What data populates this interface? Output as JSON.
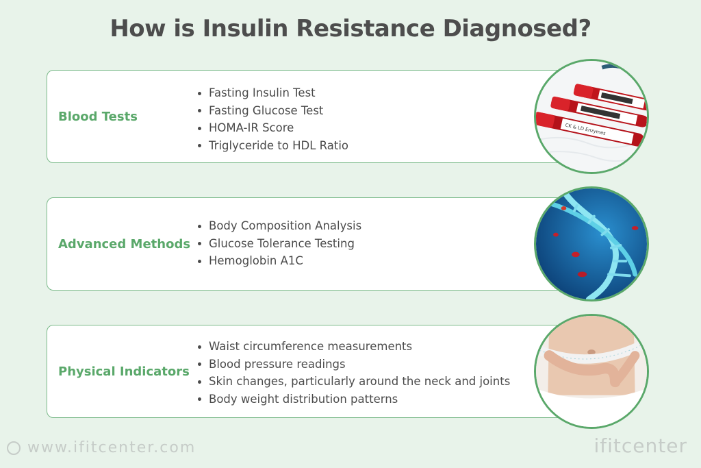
{
  "title": "How is Insulin Resistance Diagnosed?",
  "sections": [
    {
      "heading": "Blood Tests",
      "items": [
        "Fasting Insulin Test",
        "Fasting Glucose Test",
        "HOMA-IR Score",
        "Triglyceride to HDL Ratio"
      ],
      "image": "blood-test-tubes-photo",
      "image_label": "CK & LD Enzymes"
    },
    {
      "heading": "Advanced Methods",
      "items": [
        "Body Composition Analysis",
        "Glucose Tolerance Testing",
        "Hemoglobin A1C"
      ],
      "image": "dna-helix-photo"
    },
    {
      "heading": "Physical Indicators",
      "items": [
        "Waist circumference measurements",
        "Blood pressure readings",
        "Skin changes, particularly around the neck and joints",
        "Body weight distribution patterns"
      ],
      "image": "waist-measuring-tape-photo"
    }
  ],
  "footer": {
    "url": "www.ifitcenter.com",
    "brand": "ifitcenter"
  },
  "colors": {
    "background": "#e8f3ea",
    "accent": "#5aa86a",
    "title": "#4d4d4d",
    "text": "#4b4b4b",
    "footer": "#c6ccc8"
  }
}
